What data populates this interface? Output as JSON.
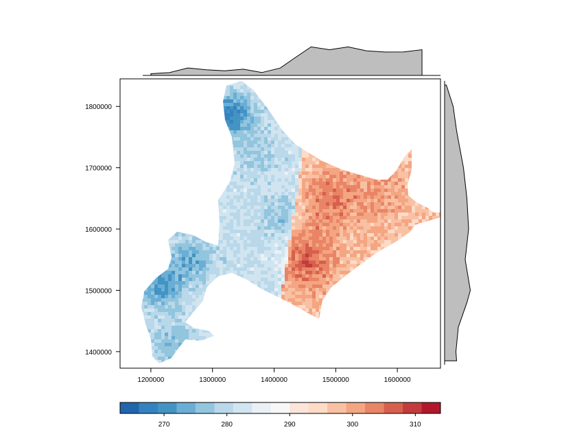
{
  "chart_data": {
    "type": "heatmap",
    "title": "",
    "xlabel": "",
    "ylabel": "",
    "x_ticks": [
      1200000,
      1300000,
      1400000,
      1500000,
      1600000
    ],
    "y_ticks": [
      1400000,
      1500000,
      1600000,
      1700000,
      1800000
    ],
    "xlim": [
      1150000,
      1670000
    ],
    "ylim": [
      1373000,
      1845000
    ],
    "colorbar": {
      "ticks": [
        270,
        280,
        290,
        300,
        310
      ],
      "range": [
        263,
        314
      ],
      "colors": [
        "#2166ac",
        "#3582c0",
        "#4393c3",
        "#6aaed6",
        "#92c5de",
        "#b9d8ea",
        "#d1e5f0",
        "#e9f1f6",
        "#f7f7f7",
        "#fbe4da",
        "#fddbc7",
        "#f9c1a3",
        "#f4a582",
        "#e98566",
        "#d6604d",
        "#c33c3c",
        "#b2182b"
      ]
    },
    "marginal_top": {
      "description": "column mean",
      "points": [
        [
          1200000,
          289
        ],
        [
          1230000,
          289
        ],
        [
          1260000,
          290
        ],
        [
          1290000,
          289.5
        ],
        [
          1320000,
          289.5
        ],
        [
          1350000,
          289.6
        ],
        [
          1380000,
          289.2
        ],
        [
          1410000,
          289.8
        ],
        [
          1430000,
          291.5
        ],
        [
          1460000,
          293.5
        ],
        [
          1490000,
          293.2
        ],
        [
          1520000,
          293.5
        ],
        [
          1550000,
          293.0
        ],
        [
          1580000,
          292.6
        ],
        [
          1610000,
          292.8
        ],
        [
          1640000,
          293.0
        ]
      ]
    },
    "marginal_right": {
      "description": "row mean",
      "points": [
        [
          1835000,
          281
        ],
        [
          1800000,
          283
        ],
        [
          1760000,
          284
        ],
        [
          1700000,
          286
        ],
        [
          1650000,
          287
        ],
        [
          1600000,
          287.5
        ],
        [
          1550000,
          286.5
        ],
        [
          1500000,
          288
        ],
        [
          1480000,
          287
        ],
        [
          1440000,
          284.5
        ],
        [
          1400000,
          283.8
        ],
        [
          1385000,
          284
        ]
      ]
    }
  }
}
